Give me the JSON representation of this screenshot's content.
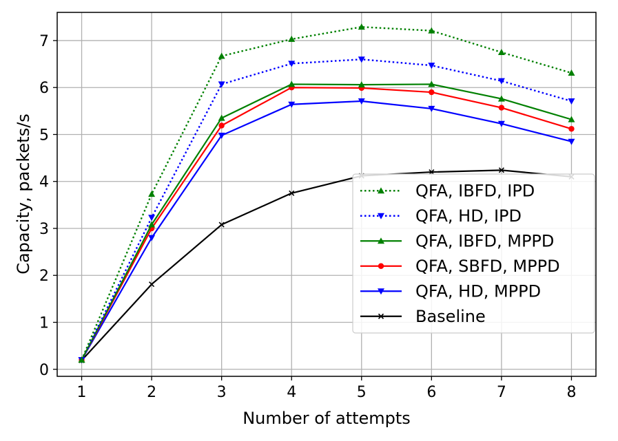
{
  "chart_data": {
    "type": "line",
    "title": "",
    "xlabel": "Number of attempts",
    "ylabel": "Capacity, packets/s",
    "xlim": [
      0.65,
      8.35
    ],
    "ylim": [
      -0.15,
      7.6
    ],
    "grid": true,
    "legend_position": "lower-right",
    "x": [
      1,
      2,
      3,
      4,
      5,
      6,
      7,
      8
    ],
    "xticks": [
      1,
      2,
      3,
      4,
      5,
      6,
      7,
      8
    ],
    "yticks": [
      0,
      1,
      2,
      3,
      4,
      5,
      6,
      7
    ],
    "series": [
      {
        "name": "QFA, IBFD, IPD",
        "color": "#008000",
        "style": "dotted",
        "marker": "triangle-up",
        "values": [
          0.2,
          3.73,
          6.67,
          7.03,
          7.29,
          7.21,
          6.75,
          6.31
        ]
      },
      {
        "name": "QFA, HD, IPD",
        "color": "#0000ff",
        "style": "dotted",
        "marker": "triangle-down",
        "values": [
          0.2,
          3.23,
          6.07,
          6.51,
          6.6,
          6.47,
          6.14,
          5.71
        ]
      },
      {
        "name": "QFA, IBFD, MPPD",
        "color": "#008000",
        "style": "solid",
        "marker": "triangle-up",
        "values": [
          0.2,
          3.08,
          5.35,
          6.07,
          6.06,
          6.07,
          5.76,
          5.32
        ]
      },
      {
        "name": "QFA, SBFD, MPPD",
        "color": "#ff0000",
        "style": "solid",
        "marker": "circle",
        "values": [
          0.2,
          3.0,
          5.19,
          6.0,
          5.99,
          5.9,
          5.57,
          5.12
        ]
      },
      {
        "name": "QFA, HD, MPPD",
        "color": "#0000ff",
        "style": "solid",
        "marker": "triangle-down",
        "values": [
          0.2,
          2.8,
          4.98,
          5.64,
          5.71,
          5.55,
          5.23,
          4.85
        ]
      },
      {
        "name": "Baseline",
        "color": "#000000",
        "style": "solid",
        "marker": "x",
        "values": [
          0.19,
          1.81,
          3.08,
          3.75,
          4.12,
          4.2,
          4.24,
          4.1
        ]
      }
    ]
  }
}
